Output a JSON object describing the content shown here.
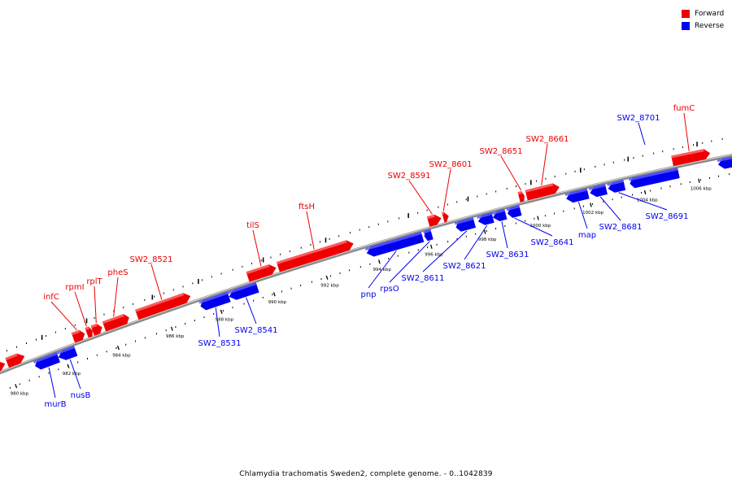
{
  "caption": "Chlamydia trachomatis Sweden2, complete genome. - 0..1042839",
  "colors": {
    "forward": "#ee0000",
    "reverse": "#0000ee",
    "backbone": "#666666"
  },
  "legend": [
    {
      "label": "Forward",
      "color": "#ee0000"
    },
    {
      "label": "Reverse",
      "color": "#0000ee"
    }
  ],
  "scale_labels": [
    "980 kbp",
    "982 kbp",
    "984 kbp",
    "986 kbp",
    "988 kbp",
    "990 kbp",
    "992 kbp",
    "994 kbp",
    "996 kbp",
    "998 kbp",
    "1000 kbp",
    "1002 kbp",
    "1004 kbp",
    "1006 kbp"
  ],
  "genes": {
    "forward": [
      {
        "name": ""
      },
      {
        "name": "infC"
      },
      {
        "name": "rpmI"
      },
      {
        "name": "rplT"
      },
      {
        "name": "pheS"
      },
      {
        "name": "SW2_8521"
      },
      {
        "name": "tilS"
      },
      {
        "name": "ftsH"
      },
      {
        "name": "SW2_8591"
      },
      {
        "name": "SW2_8601"
      },
      {
        "name": "SW2_8651"
      },
      {
        "name": "SW2_8661"
      },
      {
        "name": "fumC"
      }
    ],
    "reverse": [
      {
        "name": "murB"
      },
      {
        "name": "nusB"
      },
      {
        "name": "SW2_8531"
      },
      {
        "name": "SW2_8541"
      },
      {
        "name": "pnp"
      },
      {
        "name": "rpsO"
      },
      {
        "name": "SW2_8611"
      },
      {
        "name": "SW2_8621"
      },
      {
        "name": "SW2_8631"
      },
      {
        "name": "SW2_8641"
      },
      {
        "name": "map"
      },
      {
        "name": "SW2_8681"
      },
      {
        "name": "SW2_8691"
      },
      {
        "name": "SW2_8701"
      },
      {
        "name": ""
      }
    ]
  }
}
